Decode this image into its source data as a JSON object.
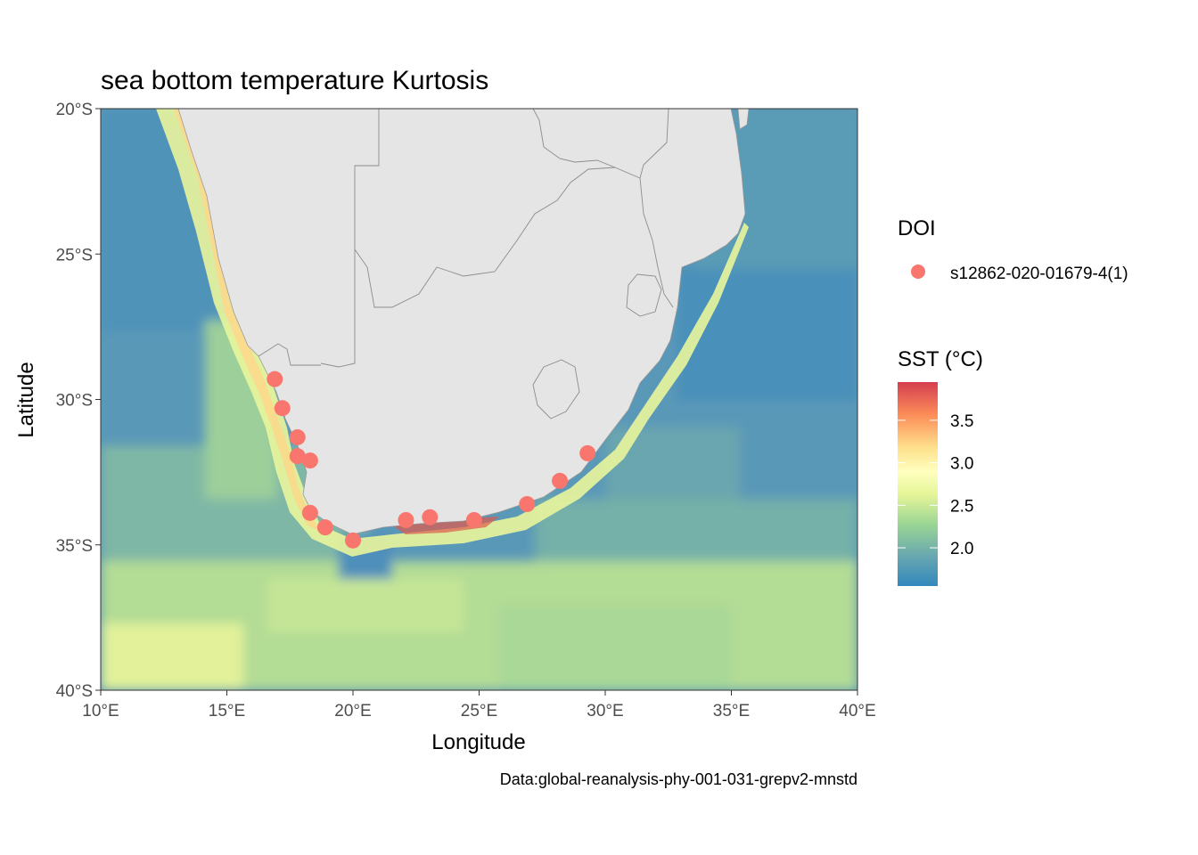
{
  "title": "sea bottom temperature Kurtosis",
  "caption": "Data:global-reanalysis-phy-001-031-grepv2-mnstd",
  "x_axis": {
    "label": "Longitude",
    "range": [
      10,
      40
    ],
    "ticks": [
      {
        "value": 10,
        "label": "10°E"
      },
      {
        "value": 15,
        "label": "15°E"
      },
      {
        "value": 20,
        "label": "20°E"
      },
      {
        "value": 25,
        "label": "25°E"
      },
      {
        "value": 30,
        "label": "30°E"
      },
      {
        "value": 35,
        "label": "35°E"
      },
      {
        "value": 40,
        "label": "40°E"
      }
    ]
  },
  "y_axis": {
    "label": "Latitude",
    "range": [
      -40,
      -20
    ],
    "ticks": [
      {
        "value": -20,
        "label": "20°S"
      },
      {
        "value": -25,
        "label": "25°S"
      },
      {
        "value": -30,
        "label": "30°S"
      },
      {
        "value": -35,
        "label": "35°S"
      },
      {
        "value": -40,
        "label": "40°S"
      }
    ]
  },
  "legend_doi": {
    "title": "DOI",
    "entries": [
      {
        "label": "s12862-020-01679-4(1)",
        "color": "#f8766d"
      }
    ]
  },
  "legend_sst": {
    "title": "SST (°C)",
    "range": [
      1.55,
      3.95
    ],
    "ticks": [
      {
        "value": 2.0,
        "label": "2.0"
      },
      {
        "value": 2.5,
        "label": "2.5"
      },
      {
        "value": 3.0,
        "label": "3.0"
      },
      {
        "value": 3.5,
        "label": "3.5"
      }
    ],
    "palette": [
      "#3288bd",
      "#66a5b1",
      "#99d594",
      "#e6f598",
      "#ffffbf",
      "#fee08b",
      "#fc8d59",
      "#d53e4f"
    ]
  },
  "colors": {
    "land": "#e5e5e5",
    "border": "#8c8c8c",
    "marker": "#f8766d"
  },
  "points": [
    {
      "lon": 16.9,
      "lat": -29.3
    },
    {
      "lon": 17.2,
      "lat": -30.3
    },
    {
      "lon": 17.8,
      "lat": -31.3
    },
    {
      "lon": 17.8,
      "lat": -31.95
    },
    {
      "lon": 18.3,
      "lat": -32.1
    },
    {
      "lon": 18.3,
      "lat": -33.9
    },
    {
      "lon": 18.9,
      "lat": -34.4
    },
    {
      "lon": 20.0,
      "lat": -34.85
    },
    {
      "lon": 22.1,
      "lat": -34.15
    },
    {
      "lon": 23.05,
      "lat": -34.05
    },
    {
      "lon": 24.8,
      "lat": -34.15
    },
    {
      "lon": 26.9,
      "lat": -33.6
    },
    {
      "lon": 28.2,
      "lat": -32.8
    },
    {
      "lon": 29.3,
      "lat": -31.85
    }
  ]
}
